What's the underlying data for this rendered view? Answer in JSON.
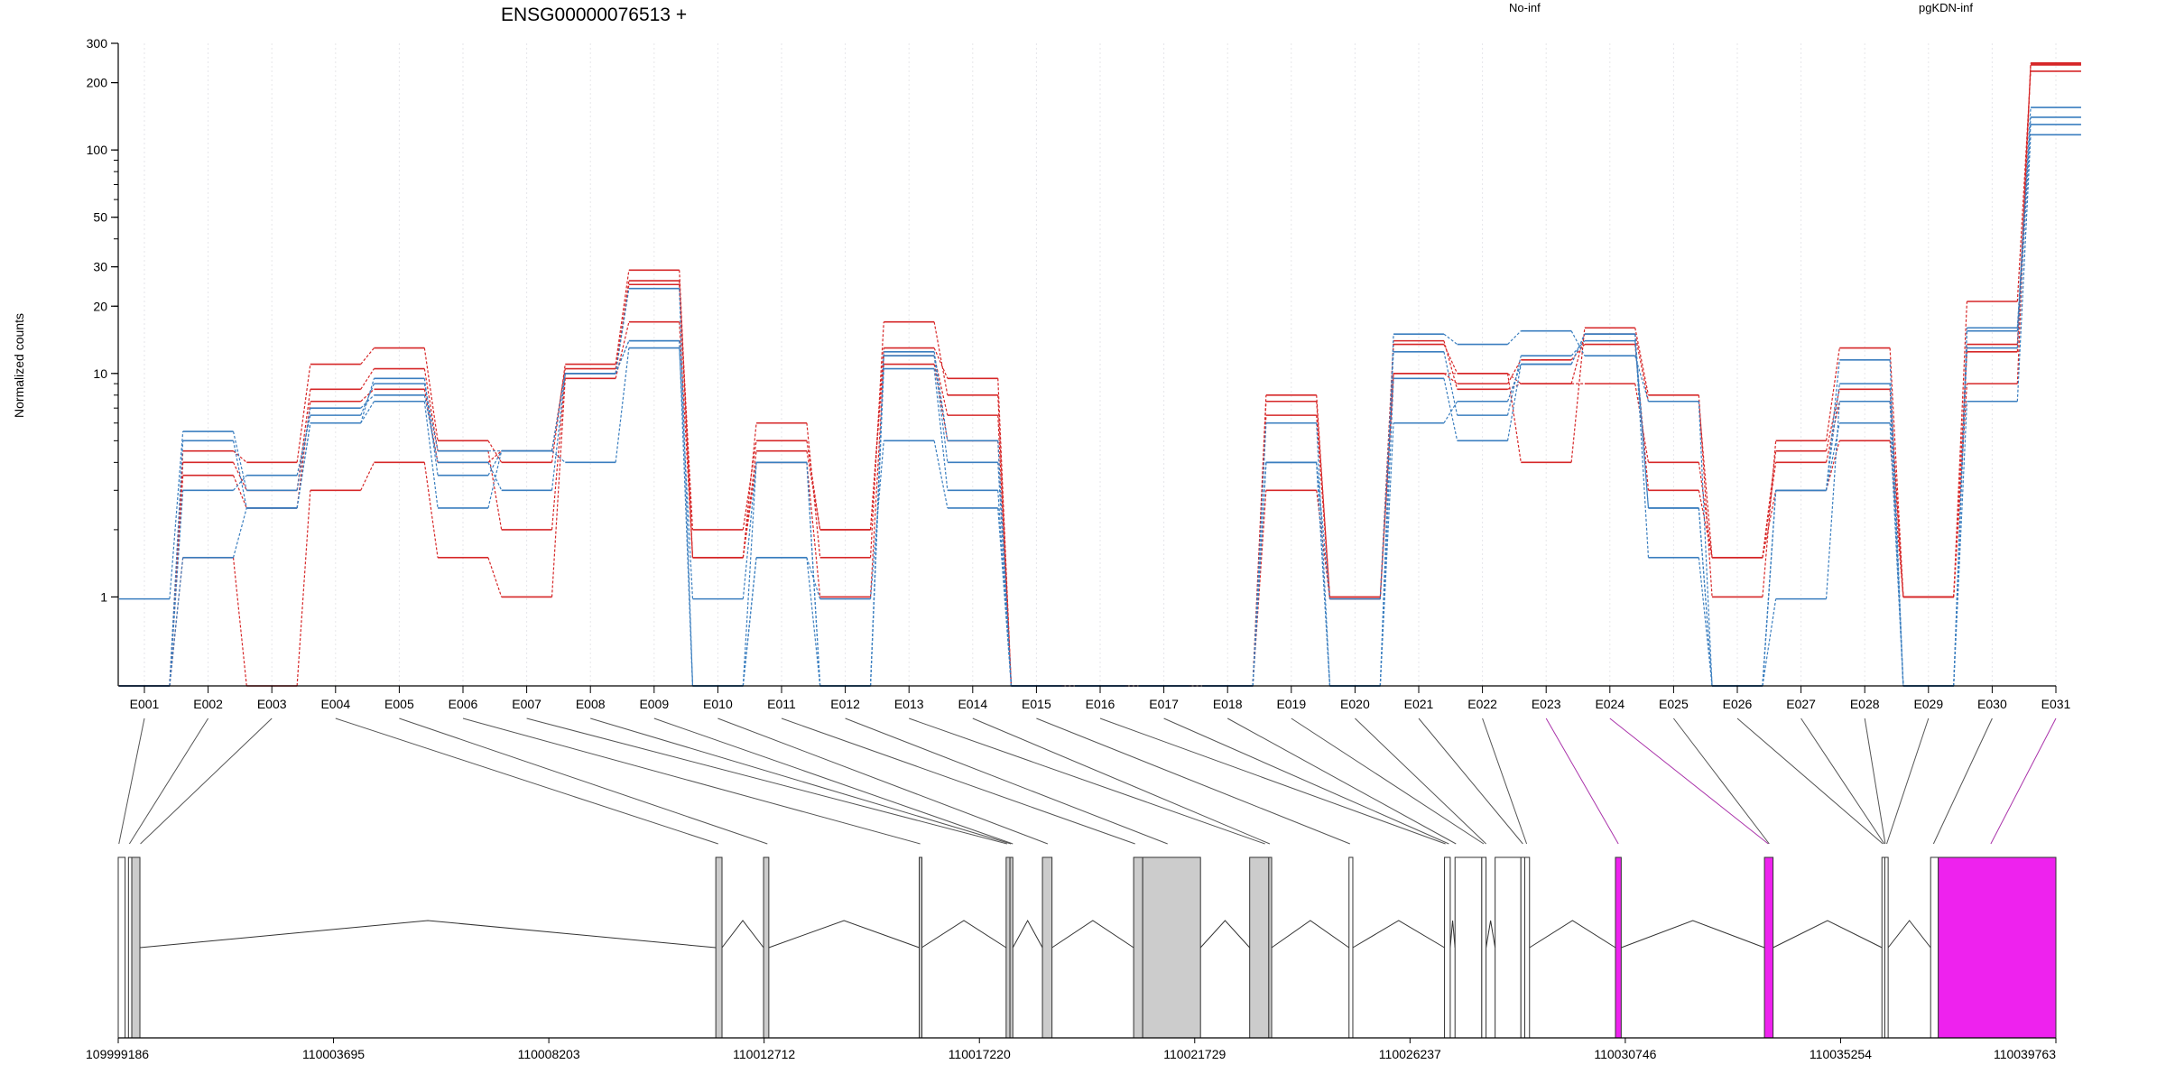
{
  "chart_data": {
    "type": "line",
    "title": "ENSG00000076513 +",
    "ylabel": "Normalized counts",
    "yscale": "log",
    "ylim": [
      0.4,
      300
    ],
    "y_ticks": [
      1,
      10,
      20,
      30,
      50,
      100,
      200,
      300
    ],
    "x_tick_labels": [
      "E001",
      "E002",
      "E003",
      "E004",
      "E005",
      "E006",
      "E007",
      "E008",
      "E009",
      "E010",
      "E011",
      "E012",
      "E013",
      "E014",
      "E015",
      "E016",
      "E017",
      "E018",
      "E019",
      "E020",
      "E021",
      "E022",
      "E023",
      "E024",
      "E025",
      "E026",
      "E027",
      "E028",
      "E029",
      "E030",
      "E031"
    ],
    "legend": [
      {
        "name": "No-inf",
        "color": "#d62728"
      },
      {
        "name": "pgKDN-inf",
        "color": "#3a7ebf"
      }
    ],
    "series": [
      {
        "group": "No-inf",
        "color": "#d62728",
        "values": [
          0.4,
          3.5,
          2.5,
          7.5,
          8.5,
          4.0,
          4.5,
          10.5,
          25.0,
          2.0,
          5.0,
          2.0,
          13.0,
          9.5,
          0.4,
          0.4,
          0.4,
          0.4,
          7.5,
          1.0,
          10.0,
          10.0,
          9.0,
          15.0,
          7.5,
          1.5,
          4.5,
          8.5,
          1.0,
          13.5,
          240
        ]
      },
      {
        "group": "No-inf",
        "color": "#d62728",
        "values": [
          0.4,
          4.5,
          4.0,
          11.0,
          13.0,
          5.0,
          4.0,
          11.0,
          29.0,
          1.5,
          6.0,
          1.5,
          17.0,
          8.0,
          0.4,
          0.4,
          0.4,
          0.4,
          8.0,
          0.98,
          13.5,
          10.0,
          4.0,
          16.0,
          8.0,
          1.0,
          5.0,
          13.0,
          1.0,
          21.0,
          225
        ]
      },
      {
        "group": "No-inf",
        "color": "#d62728",
        "values": [
          0.4,
          1.5,
          0.4,
          3.0,
          4.0,
          1.5,
          1.0,
          9.5,
          17.0,
          1.5,
          4.0,
          1.0,
          11.0,
          5.0,
          0.4,
          0.4,
          0.4,
          0.4,
          3.0,
          0.98,
          14.0,
          8.5,
          9.0,
          9.0,
          4.0,
          1.5,
          3.0,
          5.0,
          1.0,
          9.0,
          245
        ]
      },
      {
        "group": "No-inf",
        "color": "#d62728",
        "values": [
          0.4,
          4.0,
          3.0,
          8.5,
          10.5,
          4.5,
          2.0,
          10.0,
          26.0,
          1.5,
          4.5,
          2.0,
          12.0,
          6.5,
          0.4,
          0.4,
          0.4,
          0.4,
          6.5,
          0.98,
          10.0,
          9.0,
          11.5,
          13.5,
          3.0,
          1.5,
          4.0,
          7.5,
          1.0,
          12.5,
          242
        ]
      },
      {
        "group": "pgKDN-inf",
        "color": "#3a7ebf",
        "values": [
          0.98,
          5.5,
          3.0,
          7.0,
          8.0,
          4.0,
          3.0,
          10.0,
          14.0,
          0.4,
          4.0,
          0.4,
          12.0,
          4.0,
          0.4,
          0.4,
          0.4,
          0.4,
          4.0,
          0.4,
          15.0,
          13.5,
          15.5,
          12.0,
          7.5,
          0.4,
          3.0,
          11.5,
          0.4,
          16.0,
          155
        ]
      },
      {
        "group": "pgKDN-inf",
        "color": "#3a7ebf",
        "values": [
          0.4,
          3.0,
          3.5,
          6.5,
          9.0,
          4.5,
          4.5,
          4.0,
          13.0,
          0.98,
          4.0,
          0.4,
          10.5,
          3.0,
          0.4,
          0.4,
          0.4,
          0.4,
          4.0,
          0.98,
          12.5,
          6.5,
          12.0,
          14.0,
          2.5,
          0.4,
          0.98,
          7.5,
          0.4,
          15.5,
          140
        ]
      },
      {
        "group": "pgKDN-inf",
        "color": "#3a7ebf",
        "values": [
          0.4,
          1.5,
          2.5,
          6.0,
          7.5,
          2.5,
          4.5,
          10.0,
          24.0,
          0.4,
          1.5,
          0.4,
          12.5,
          5.0,
          0.4,
          0.4,
          0.4,
          0.4,
          6.0,
          0.4,
          6.0,
          7.5,
          11.0,
          15.0,
          1.5,
          0.4,
          3.0,
          6.0,
          0.4,
          7.5,
          117
        ]
      },
      {
        "group": "pgKDN-inf",
        "color": "#3a7ebf",
        "values": [
          0.4,
          5.0,
          2.5,
          6.0,
          9.5,
          3.5,
          4.5,
          10.0,
          14.0,
          0.4,
          1.5,
          0.98,
          5.0,
          2.5,
          0.4,
          0.4,
          0.4,
          0.4,
          4.0,
          0.4,
          9.5,
          5.0,
          11.0,
          15.0,
          2.5,
          0.4,
          3.0,
          9.0,
          0.4,
          13.0,
          130
        ]
      }
    ],
    "genomic_axis": {
      "start": 109999186,
      "end": 110039763,
      "tick_labels": [
        "109999186",
        "110003695",
        "110008203",
        "110012712",
        "110017220",
        "110021729",
        "110026237",
        "110030746",
        "110035254",
        "110039763"
      ]
    },
    "gene_model": {
      "exons": [
        {
          "start": 109999186,
          "end": 109999330,
          "fill": "#ffffff"
        },
        {
          "start": 109999400,
          "end": 109999470,
          "fill": "#ffffff"
        },
        {
          "start": 109999470,
          "end": 109999640,
          "fill": "#cccccc"
        },
        {
          "start": 110011700,
          "end": 110011830,
          "fill": "#cccccc"
        },
        {
          "start": 110012700,
          "end": 110012810,
          "fill": "#cccccc"
        },
        {
          "start": 110015960,
          "end": 110016010,
          "fill": "#cccccc"
        },
        {
          "start": 110017780,
          "end": 110017860,
          "fill": "#cccccc"
        },
        {
          "start": 110017860,
          "end": 110017920,
          "fill": "#cccccc"
        },
        {
          "start": 110018540,
          "end": 110018740,
          "fill": "#cccccc"
        },
        {
          "start": 110020450,
          "end": 110020640,
          "fill": "#cccccc"
        },
        {
          "start": 110020640,
          "end": 110021850,
          "fill": "#cccccc"
        },
        {
          "start": 110022880,
          "end": 110023280,
          "fill": "#cccccc"
        },
        {
          "start": 110023280,
          "end": 110023340,
          "fill": "#cccccc"
        },
        {
          "start": 110024960,
          "end": 110025040,
          "fill": "#ffffff"
        },
        {
          "start": 110026960,
          "end": 110027080,
          "fill": "#ffffff"
        },
        {
          "start": 110027180,
          "end": 110027740,
          "fill": "#ffffff"
        },
        {
          "start": 110027740,
          "end": 110027830,
          "fill": "#ffffff"
        },
        {
          "start": 110028020,
          "end": 110028560,
          "fill": "#ffffff"
        },
        {
          "start": 110028560,
          "end": 110028640,
          "fill": "#ffffff"
        },
        {
          "start": 110028640,
          "end": 110028740,
          "fill": "#ffffff"
        },
        {
          "start": 110030540,
          "end": 110030660,
          "fill": "#ee22ee"
        },
        {
          "start": 110033660,
          "end": 110033840,
          "fill": "#ee22ee"
        },
        {
          "start": 110036120,
          "end": 110036180,
          "fill": "#ffffff"
        },
        {
          "start": 110036180,
          "end": 110036250,
          "fill": "#ffffff"
        },
        {
          "start": 110037140,
          "end": 110037300,
          "fill": "#ffffff"
        },
        {
          "start": 110037300,
          "end": 110039763,
          "fill": "#ee22ee"
        }
      ],
      "bin_links": [
        {
          "bin": "E001",
          "to": 109999200,
          "color": "#555555"
        },
        {
          "bin": "E002",
          "to": 109999420,
          "color": "#555555"
        },
        {
          "bin": "E003",
          "to": 109999650,
          "color": "#555555"
        },
        {
          "bin": "E004",
          "to": 110011750,
          "color": "#555555"
        },
        {
          "bin": "E005",
          "to": 110012780,
          "color": "#555555"
        },
        {
          "bin": "E006",
          "to": 110015980,
          "color": "#555555"
        },
        {
          "bin": "E007",
          "to": 110017800,
          "color": "#555555"
        },
        {
          "bin": "E008",
          "to": 110017880,
          "color": "#555555"
        },
        {
          "bin": "E009",
          "to": 110017920,
          "color": "#555555"
        },
        {
          "bin": "E010",
          "to": 110018650,
          "color": "#555555"
        },
        {
          "bin": "E011",
          "to": 110020480,
          "color": "#555555"
        },
        {
          "bin": "E012",
          "to": 110021160,
          "color": "#555555"
        },
        {
          "bin": "E013",
          "to": 110023200,
          "color": "#555555"
        },
        {
          "bin": "E014",
          "to": 110023300,
          "color": "#555555"
        },
        {
          "bin": "E015",
          "to": 110024980,
          "color": "#555555"
        },
        {
          "bin": "E016",
          "to": 110026980,
          "color": "#555555"
        },
        {
          "bin": "E017",
          "to": 110027050,
          "color": "#555555"
        },
        {
          "bin": "E018",
          "to": 110027200,
          "color": "#555555"
        },
        {
          "bin": "E019",
          "to": 110027780,
          "color": "#555555"
        },
        {
          "bin": "E020",
          "to": 110027830,
          "color": "#555555"
        },
        {
          "bin": "E021",
          "to": 110028600,
          "color": "#555555"
        },
        {
          "bin": "E022",
          "to": 110028680,
          "color": "#555555"
        },
        {
          "bin": "E023",
          "to": 110030600,
          "color": "#aa33aa"
        },
        {
          "bin": "E024",
          "to": 110033740,
          "color": "#aa33aa"
        },
        {
          "bin": "E025",
          "to": 110033760,
          "color": "#555555"
        },
        {
          "bin": "E026",
          "to": 110036140,
          "color": "#555555"
        },
        {
          "bin": "E027",
          "to": 110036170,
          "color": "#555555"
        },
        {
          "bin": "E028",
          "to": 110036190,
          "color": "#555555"
        },
        {
          "bin": "E029",
          "to": 110036220,
          "color": "#555555"
        },
        {
          "bin": "E030",
          "to": 110037200,
          "color": "#555555"
        },
        {
          "bin": "E031",
          "to": 110038400,
          "color": "#aa33aa"
        }
      ]
    }
  }
}
